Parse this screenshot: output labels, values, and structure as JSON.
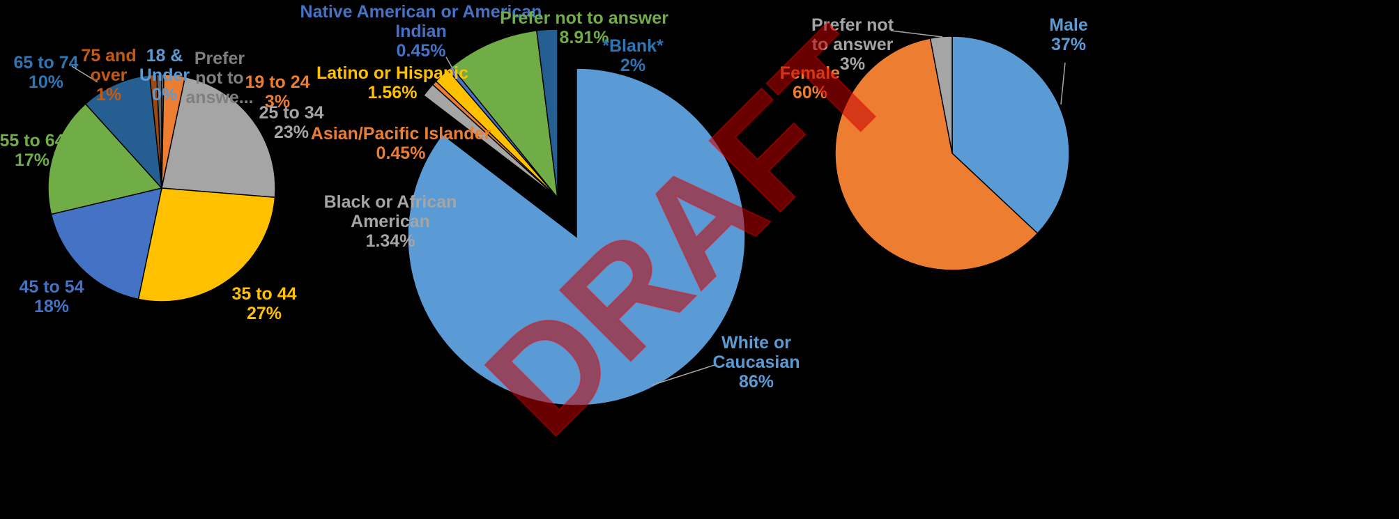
{
  "watermark": "DRAFT",
  "chart_data": [
    {
      "type": "pie",
      "categories": [
        "18 & Under",
        "19 to 24",
        "25 to 34",
        "35 to 44",
        "45 to 54",
        "55 to 64",
        "65 to 74",
        "75 and over",
        "Prefer not to answer"
      ],
      "values": [
        0.3,
        3,
        23,
        27,
        18,
        17,
        10,
        1,
        0.7
      ],
      "display_labels": [
        [
          "18 &",
          "Under",
          "0%"
        ],
        [
          "19 to 24",
          "3%"
        ],
        [
          "25 to 34",
          "23%"
        ],
        [
          "35 to 44",
          "27%"
        ],
        [
          "45 to 54",
          "18%"
        ],
        [
          "55 to 64",
          "17%"
        ],
        [
          "65 to 74",
          "10%"
        ],
        [
          "75 and",
          "over",
          "1%"
        ],
        [
          "Prefer",
          "not to",
          "answe..."
        ]
      ],
      "colors": [
        "#5B9BD5",
        "#ED7D31",
        "#A5A5A5",
        "#FFC000",
        "#4472C4",
        "#70AD47",
        "#255E91",
        "#9E480E",
        "#636363"
      ]
    },
    {
      "type": "pie",
      "categories": [
        "White or Caucasian",
        "Black or African American",
        "Asian/Pacific Islander",
        "Latino or Hispanic",
        "Native American or American Indian",
        "Prefer not to answer",
        "*Blank*"
      ],
      "values": [
        86,
        1.34,
        0.45,
        1.56,
        0.45,
        8.91,
        2
      ],
      "display_labels": [
        [
          "White or",
          "Caucasian",
          "86%"
        ],
        [
          "Black or African",
          "American",
          "1.34%"
        ],
        [
          "Asian/Pacific Islander",
          "0.45%"
        ],
        [
          "Latino or Hispanic",
          "1.56%"
        ],
        [
          "Native American or American",
          "Indian",
          "0.45%"
        ],
        [
          "Prefer not to answer",
          "8.91%"
        ],
        [
          "*Blank*",
          "2%"
        ]
      ],
      "colors": [
        "#5B9BD5",
        "#A5A5A5",
        "#ED7D31",
        "#FFC000",
        "#4472C4",
        "#70AD47",
        "#255E91"
      ]
    },
    {
      "type": "pie",
      "categories": [
        "Male",
        "Female",
        "Prefer not to answer"
      ],
      "values": [
        37,
        60,
        3
      ],
      "display_labels": [
        [
          "Male",
          "37%"
        ],
        [
          "Female",
          "60%"
        ],
        [
          "Prefer not",
          "to answer",
          "3%"
        ]
      ],
      "colors": [
        "#5B9BD5",
        "#ED7D31",
        "#A5A5A5"
      ]
    }
  ]
}
